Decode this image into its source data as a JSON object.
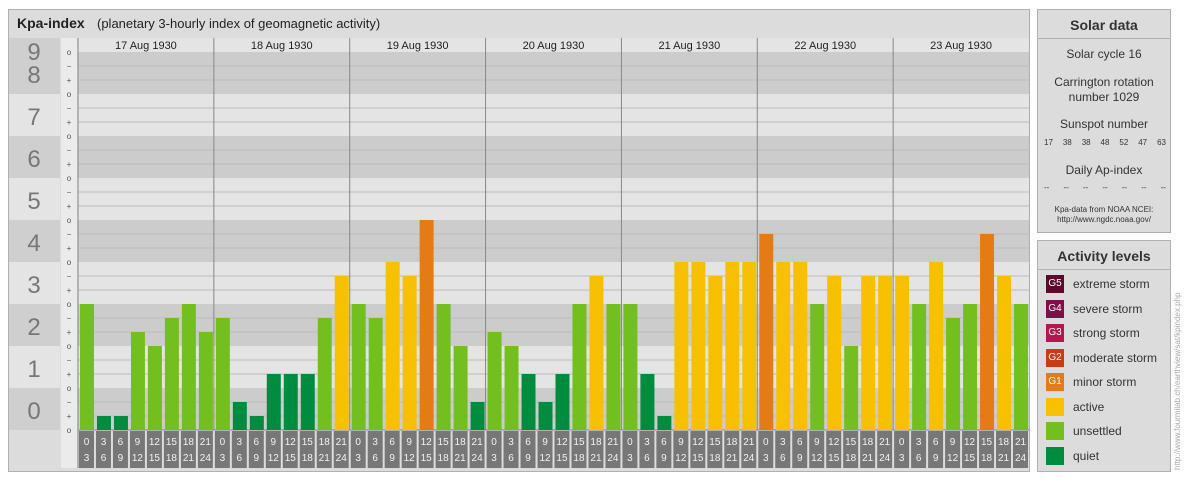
{
  "header": {
    "title": "Kpa-index",
    "subtitle": "(planetary 3-hourly index of geomagnetic activity)"
  },
  "chart_data": {
    "type": "bar",
    "title": "Kpa-index",
    "subtitle": "(planetary 3-hourly index of geomagnetic activity)",
    "ylim": [
      0,
      9
    ],
    "y_ticks": [
      "0",
      "1",
      "2",
      "3",
      "4",
      "5",
      "6",
      "7",
      "8",
      "9"
    ],
    "thirds_labels": [
      "o",
      "+",
      "−"
    ],
    "days": [
      "17 Aug 1930",
      "18 Aug 1930",
      "19 Aug 1930",
      "20 Aug 1930",
      "21 Aug 1930",
      "22 Aug 1930",
      "23 Aug 1930"
    ],
    "interval_top": [
      "0",
      "3",
      "6",
      "9",
      "12",
      "15",
      "18",
      "21"
    ],
    "interval_bottom": [
      "3",
      "6",
      "9",
      "12",
      "15",
      "18",
      "21",
      "24"
    ],
    "series": [
      {
        "values": [
          3.0,
          0.333,
          0.333,
          2.333,
          2.0,
          2.667,
          3.0,
          2.333,
          2.667,
          0.667,
          0.333,
          1.333,
          1.333,
          1.333,
          2.667,
          3.667,
          3.0,
          2.667,
          4.0,
          3.667,
          5.0,
          3.0,
          2.0,
          0.667,
          2.333,
          2.0,
          1.333,
          0.667,
          1.333,
          3.0,
          3.667,
          3.0,
          3.0,
          1.333,
          0.333,
          4.0,
          4.0,
          3.667,
          4.0,
          4.0,
          4.667,
          4.0,
          4.0,
          3.0,
          3.667,
          2.0,
          3.667,
          3.667,
          3.667,
          3.0,
          4.0,
          2.667,
          3.0,
          4.667,
          3.667,
          3.0
        ]
      }
    ],
    "colors": {
      "quiet": "#008c3e",
      "unsettled": "#73bf1f",
      "active": "#f7c000",
      "minor": "#e47b15"
    }
  },
  "solar": {
    "heading": "Solar data",
    "cycle": "Solar cycle 16",
    "carrington_1": "Carrington rotation",
    "carrington_2": "number 1029",
    "sunspot_heading": "Sunspot number",
    "sunspot_values": [
      "17",
      "38",
      "38",
      "48",
      "52",
      "47",
      "63"
    ],
    "ap_heading": "Daily Ap-index",
    "ap_values": [
      "--",
      "--",
      "--",
      "--",
      "--",
      "--",
      "--"
    ],
    "source_1": "Kpa-data from NOAA NCEI:",
    "source_2": "http://www.ngdc.noaa.gov/"
  },
  "levels": {
    "heading": "Activity levels",
    "items": [
      {
        "code": "G5",
        "label": "extreme storm",
        "color": "#5a0a2a"
      },
      {
        "code": "G4",
        "label": "severe storm",
        "color": "#7f0f4b"
      },
      {
        "code": "G3",
        "label": "strong storm",
        "color": "#b6154e"
      },
      {
        "code": "G2",
        "label": "moderate storm",
        "color": "#cd3a14"
      },
      {
        "code": "G1",
        "label": "minor storm",
        "color": "#e47b15"
      },
      {
        "code": "",
        "label": "active",
        "color": "#f7c000"
      },
      {
        "code": "",
        "label": "unsettled",
        "color": "#73bf1f"
      },
      {
        "code": "",
        "label": "quiet",
        "color": "#008c3e"
      }
    ]
  },
  "watermark": "http://www.fourmilab.ch/earthview/sat/kpindex.php"
}
